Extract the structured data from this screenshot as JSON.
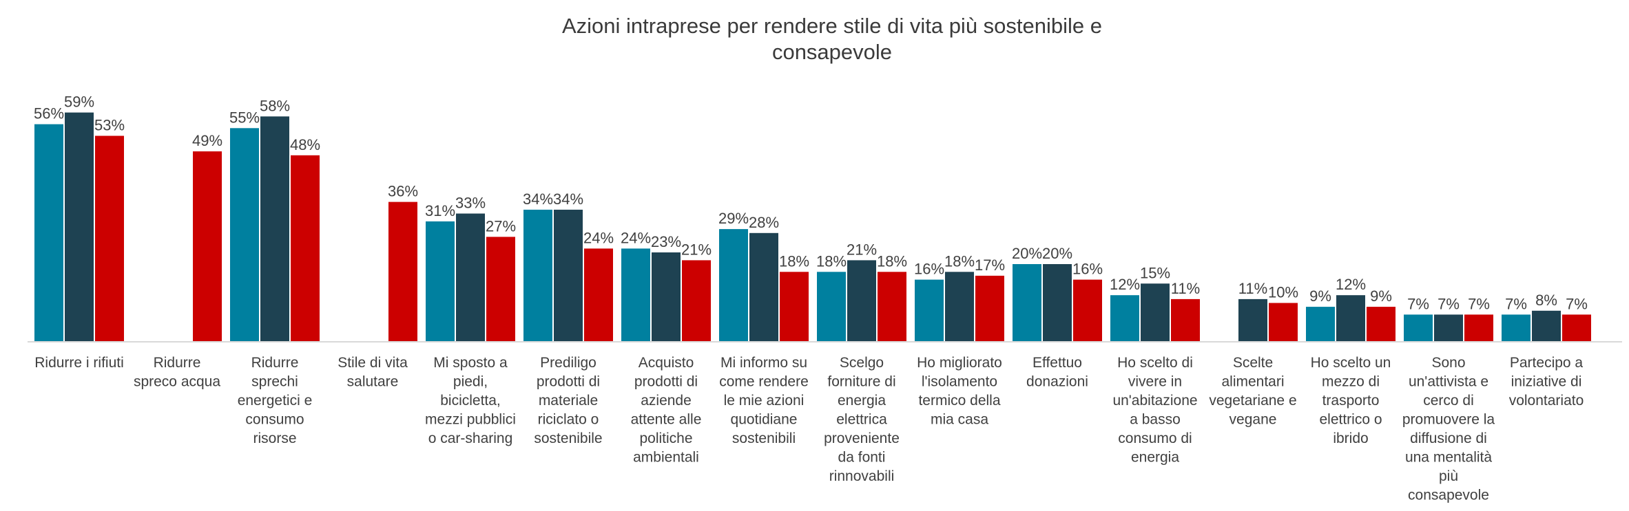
{
  "chart_data": {
    "type": "bar",
    "title_lines": [
      "Azioni intraprese per rendere stile di vita più sostenibile e",
      "consapevole"
    ],
    "xlabel": "",
    "ylabel": "",
    "ylim": [
      0,
      65
    ],
    "grid": false,
    "legend": "none",
    "series_colors": [
      "#00809f",
      "#1e4252",
      "#cc0000"
    ],
    "categories": [
      "Ridurre i rifiuti",
      "Ridurre spreco acqua",
      "Ridurre sprechi energetici e consumo risorse",
      "Stile di vita salutare",
      "Mi sposto a piedi, bicicletta, mezzi pubblici o car-sharing",
      "Prediligo prodotti di materiale riciclato o sostenibile",
      "Acquisto prodotti di aziende attente alle politiche ambientali",
      "Mi informo su come rendere le mie azioni quotidiane sostenibili",
      "Scelgo forniture di energia elettrica proveniente da fonti rinnovabili",
      "Ho migliorato l'isolamento termico della mia casa",
      "Effettuo donazioni",
      "Ho scelto di vivere in un'abitazione a basso consumo di energia",
      "Scelte alimentari vegetariane e vegane",
      "Ho scelto un mezzo di trasporto elettrico o ibrido",
      "Sono un'attivista e cerco di promuovere la diffusione di una mentalità più consapevole",
      "Partecipo a iniziative di volontariato"
    ],
    "category_lines": [
      [
        "Ridurre i rifiuti"
      ],
      [
        "Ridurre",
        "spreco acqua"
      ],
      [
        "Ridurre",
        "sprechi",
        "energetici e",
        "consumo",
        "risorse"
      ],
      [
        "Stile di vita",
        "salutare"
      ],
      [
        "Mi sposto a",
        "piedi,",
        "bicicletta,",
        "mezzi pubblici",
        "o car-sharing"
      ],
      [
        "Prediligo",
        "prodotti di",
        "materiale",
        "riciclato o",
        "sostenibile"
      ],
      [
        "Acquisto",
        "prodotti di",
        "aziende",
        "attente alle",
        "politiche",
        "ambientali"
      ],
      [
        "Mi informo su",
        "come rendere",
        "le mie azioni",
        "quotidiane",
        "sostenibili"
      ],
      [
        "Scelgo",
        "forniture di",
        "energia",
        "elettrica",
        "proveniente",
        "da fonti",
        "rinnovabili"
      ],
      [
        "Ho migliorato",
        "l'isolamento",
        "termico della",
        "mia casa"
      ],
      [
        "Effettuo",
        "donazioni"
      ],
      [
        "Ho scelto di",
        "vivere in",
        "un'abitazione",
        "a basso",
        "consumo di",
        "energia"
      ],
      [
        "Scelte",
        "alimentari",
        "vegetariane e",
        "vegane"
      ],
      [
        "Ho scelto un",
        "mezzo di",
        "trasporto",
        "elettrico o",
        "ibrido"
      ],
      [
        "Sono",
        "un'attivista e",
        "cerco di",
        "promuovere la",
        "diffusione di",
        "una mentalità",
        "più",
        "consapevole"
      ],
      [
        "Partecipo a",
        "iniziative di",
        "volontariato"
      ]
    ],
    "series": [
      {
        "values": [
          56,
          null,
          55,
          null,
          31,
          34,
          24,
          29,
          18,
          16,
          20,
          12,
          null,
          9,
          7,
          7
        ]
      },
      {
        "values": [
          59,
          null,
          58,
          null,
          33,
          34,
          23,
          28,
          21,
          18,
          20,
          15,
          11,
          12,
          7,
          8
        ]
      },
      {
        "values": [
          53,
          49,
          48,
          36,
          27,
          24,
          21,
          18,
          18,
          17,
          16,
          11,
          10,
          9,
          7,
          7
        ]
      }
    ],
    "value_suffix": "%"
  }
}
